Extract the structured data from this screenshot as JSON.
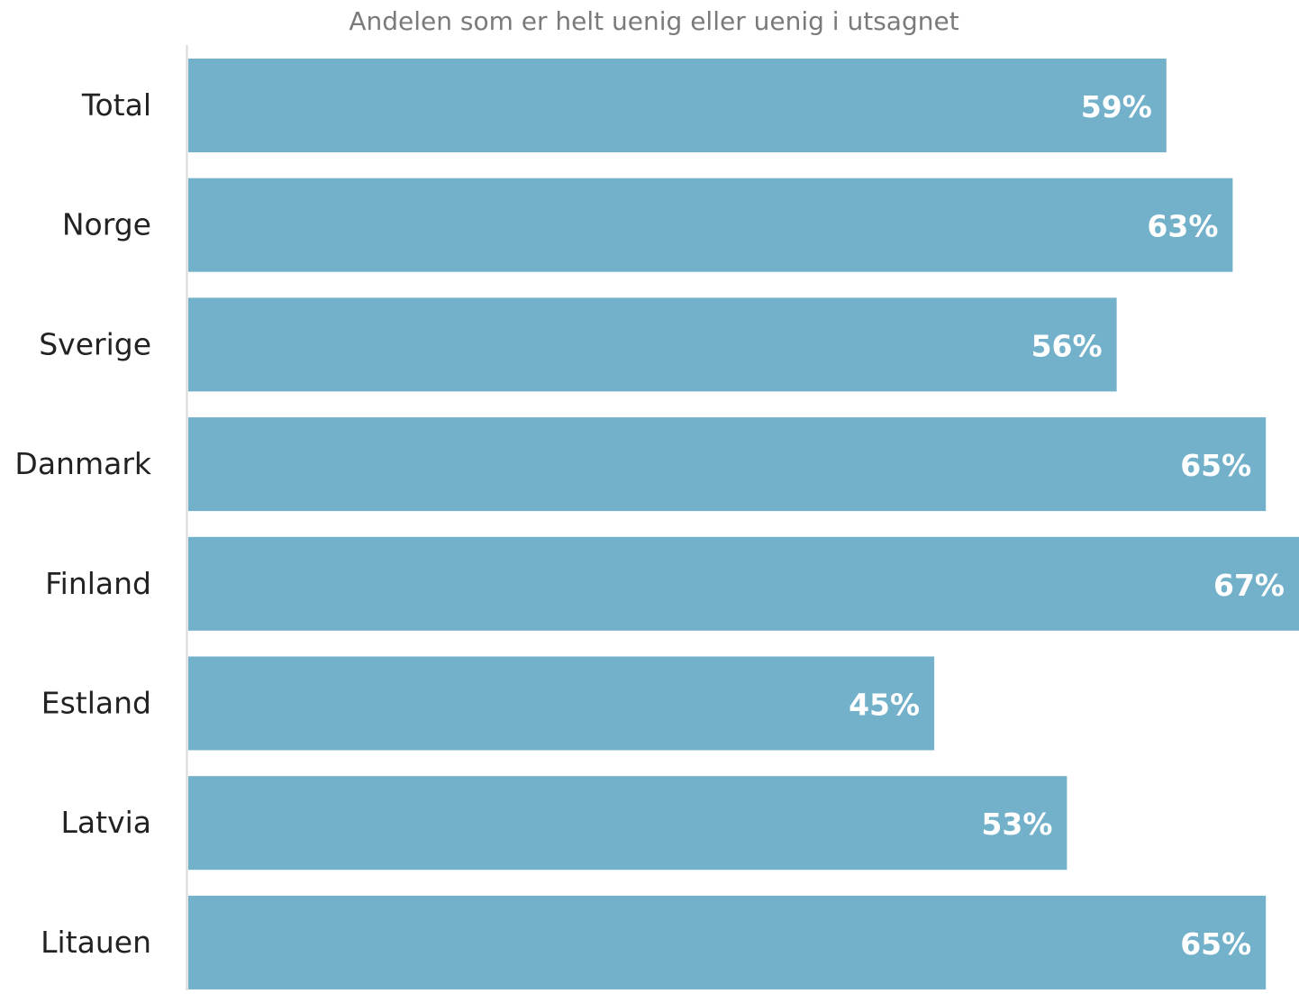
{
  "chart_data": {
    "type": "bar",
    "orientation": "horizontal",
    "title": "Andelen som er helt uenig eller uenig i utsagnet",
    "categories": [
      "Total",
      "Norge",
      "Sverige",
      "Danmark",
      "Finland",
      "Estland",
      "Latvia",
      "Litauen"
    ],
    "values": [
      59,
      63,
      56,
      65,
      67,
      45,
      53,
      65
    ],
    "value_labels": [
      "59%",
      "63%",
      "56%",
      "65%",
      "67%",
      "45%",
      "53%",
      "65%"
    ],
    "unit": "%",
    "xlim": [
      0,
      67
    ],
    "grid": false,
    "legend": "none",
    "colors": {
      "bar": "#72b1c9",
      "bar_label": "#ffffff",
      "category_label": "#222222",
      "title": "#7a7a7a",
      "axis_line": "#d9d9d9"
    }
  }
}
